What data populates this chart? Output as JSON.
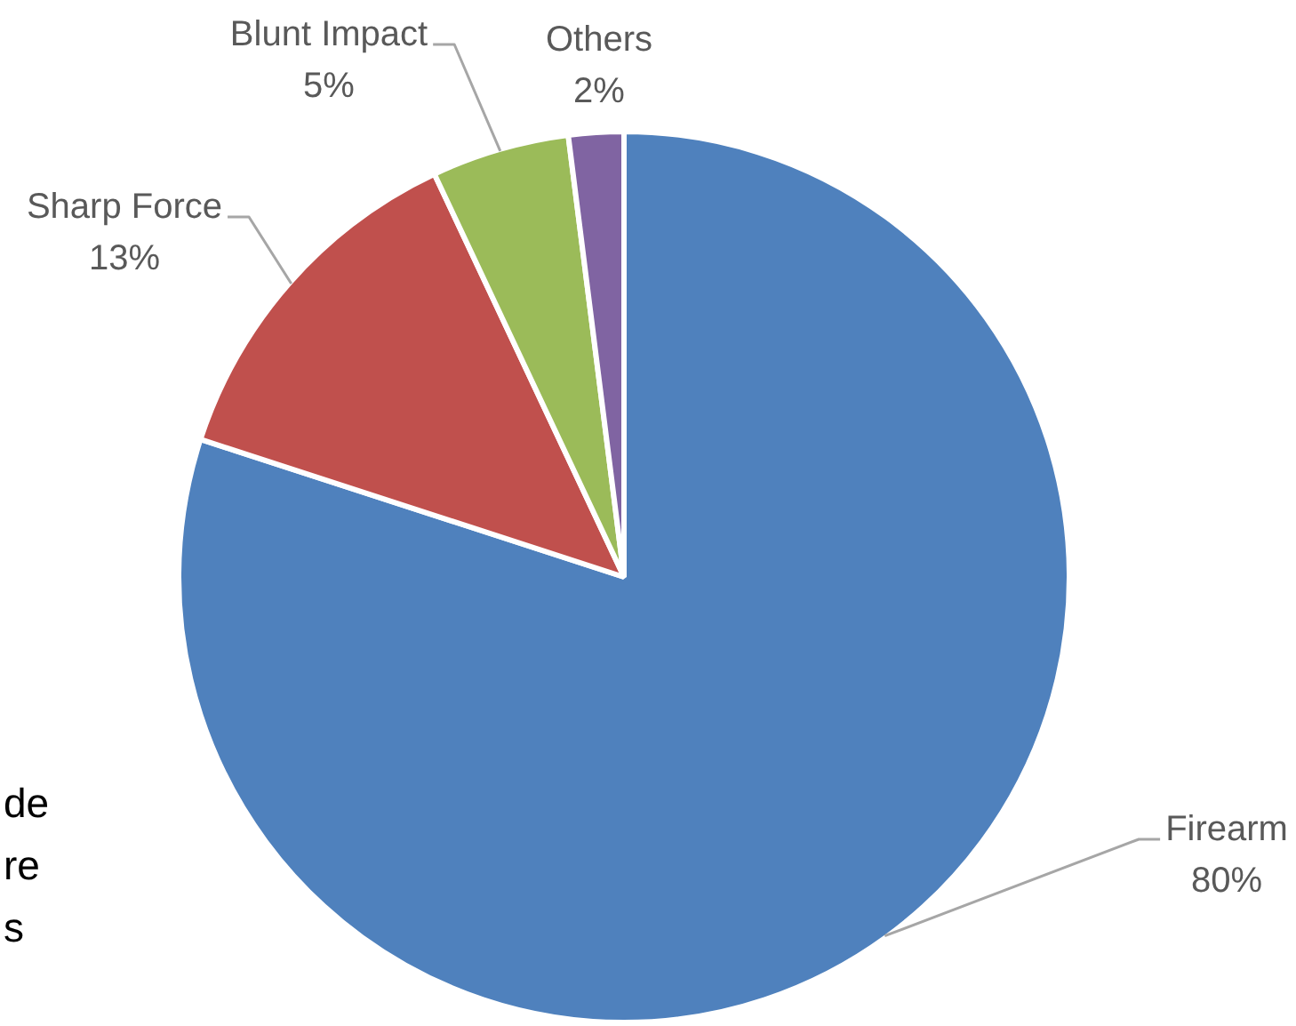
{
  "chart_data": {
    "type": "pie",
    "categories": [
      "Firearm",
      "Sharp Force",
      "Blunt Impact",
      "Others"
    ],
    "values": [
      80,
      13,
      5,
      2
    ],
    "colors": [
      "#4f81bd",
      "#c0504d",
      "#9bbb59",
      "#8064a2"
    ],
    "value_labels": [
      "80%",
      "13%",
      "5%",
      "2%"
    ],
    "legend": false,
    "annotations": [
      "de",
      "re",
      "s"
    ]
  }
}
